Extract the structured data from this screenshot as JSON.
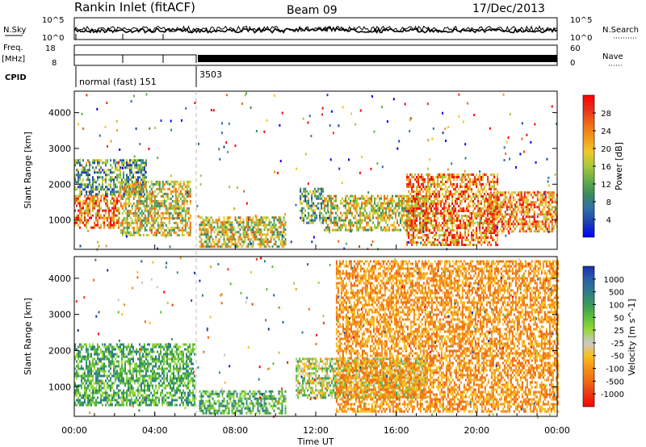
{
  "header": {
    "station": "Rankin Inlet (fitACF)",
    "beam": "Beam 09",
    "date": "17/Dec/2013"
  },
  "top_panels": {
    "nsky_label": "N.Sky",
    "nsky_ticks": [
      "10^5",
      "10^0"
    ],
    "nsearch_label": "N.Search",
    "nsearch_ticks": [
      "10^5",
      "10^0"
    ],
    "freq_label_1": "Freq.",
    "freq_label_2": "[MHz]",
    "freq_ticks": [
      "18",
      "8"
    ],
    "nave_label": "Nave",
    "nave_ticks": [
      "60",
      "0"
    ],
    "cpid_label": "CPID",
    "cpid_segments": [
      {
        "start_hour": 0,
        "end_hour": 6.1,
        "text": "normal (fast) 151"
      },
      {
        "start_hour": 6.1,
        "end_hour": 24,
        "text": "3503"
      }
    ]
  },
  "chart_data": [
    {
      "type": "heatmap",
      "title": "Power",
      "ylabel": "Slant Range [km]",
      "ylim": [
        180,
        4600
      ],
      "yticks": [
        "1000",
        "2000",
        "3000",
        "4000"
      ],
      "xlim": [
        "00:00",
        "24:00"
      ],
      "colorbar": {
        "label": "Power [dB]",
        "ticks": [
          "4",
          "8",
          "12",
          "16",
          "20",
          "24",
          "28"
        ],
        "colors": [
          "#0000ff",
          "#1a3fb0",
          "#2f6ea8",
          "#3a8a60",
          "#63ad4a",
          "#a8c83a",
          "#f0c82a",
          "#f09a1a",
          "#ef6a14",
          "#e8301a",
          "#ff0000"
        ]
      },
      "blobs": [
        {
          "hours": [
            0.0,
            2.2
          ],
          "range_km": [
            800,
            1700
          ],
          "level": "high"
        },
        {
          "hours": [
            0.0,
            3.6
          ],
          "range_km": [
            1700,
            2700
          ],
          "level": "mid"
        },
        {
          "hours": [
            2.2,
            5.8
          ],
          "range_km": [
            600,
            2100
          ],
          "level": "mid-high"
        },
        {
          "hours": [
            6.2,
            10.5
          ],
          "range_km": [
            250,
            1100
          ],
          "level": "mid-high"
        },
        {
          "hours": [
            11.2,
            12.4
          ],
          "range_km": [
            900,
            1900
          ],
          "level": "mid"
        },
        {
          "hours": [
            12.4,
            17.6
          ],
          "range_km": [
            700,
            1700
          ],
          "level": "mid-high"
        },
        {
          "hours": [
            16.5,
            21.0
          ],
          "range_km": [
            300,
            2300
          ],
          "level": "high"
        },
        {
          "hours": [
            20.5,
            24.0
          ],
          "range_km": [
            700,
            1800
          ],
          "level": "high"
        }
      ]
    },
    {
      "type": "heatmap",
      "title": "Velocity",
      "ylabel": "Slant Range [km]",
      "ylim": [
        180,
        4600
      ],
      "yticks": [
        "1000",
        "2000",
        "3000",
        "4000"
      ],
      "xlim": [
        "00:00",
        "24:00"
      ],
      "xticks": [
        "00:00",
        "04:00",
        "08:00",
        "12:00",
        "16:00",
        "20:00",
        "00:00"
      ],
      "xlabel": "Time UT",
      "colorbar": {
        "label": "Velocity [m s^-1]",
        "ticks": [
          "1000",
          "500",
          "100",
          "50",
          "25",
          "-25",
          "-50",
          "-100",
          "-500",
          "-1000"
        ],
        "colors": [
          "#1a2fb0",
          "#2a5ea8",
          "#2f7c8a",
          "#3a9a5a",
          "#5cbf3a",
          "#9ad83a",
          "#c8c8c8",
          "#f8c020",
          "#f49018",
          "#ef6a14",
          "#e83a14",
          "#ff0000"
        ]
      },
      "blobs": [
        {
          "hours": [
            0.0,
            6.0
          ],
          "range_km": [
            500,
            2200
          ],
          "sign": "toward",
          "speed": "medium"
        },
        {
          "hours": [
            6.2,
            10.5
          ],
          "range_km": [
            250,
            900
          ],
          "sign": "toward",
          "speed": "medium"
        },
        {
          "hours": [
            11.0,
            17.5
          ],
          "range_km": [
            700,
            1800
          ],
          "sign": "mixed",
          "speed": "slow"
        },
        {
          "hours": [
            13.0,
            24.0
          ],
          "range_km": [
            300,
            4500
          ],
          "sign": "away",
          "speed": "medium"
        }
      ]
    }
  ]
}
